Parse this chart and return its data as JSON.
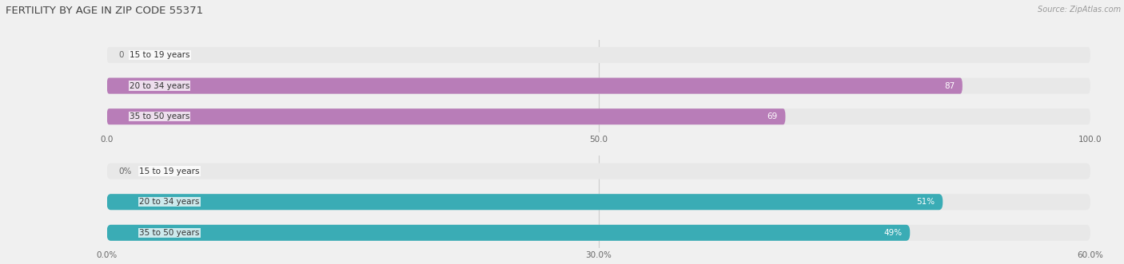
{
  "title": "FERTILITY BY AGE IN ZIP CODE 55371",
  "source": "Source: ZipAtlas.com",
  "chart1": {
    "categories": [
      "15 to 19 years",
      "20 to 34 years",
      "35 to 50 years"
    ],
    "values": [
      0.0,
      87.0,
      69.0
    ],
    "xlim": [
      0,
      100
    ],
    "xticks": [
      0.0,
      50.0,
      100.0
    ],
    "xtick_labels": [
      "0.0",
      "50.0",
      "100.0"
    ],
    "bar_color": "#b87db8",
    "bar_bg_color": "#e8e8e8",
    "label_color_inside": "#ffffff",
    "label_color_outside": "#666666",
    "value_threshold": 8,
    "value_fmt": "{}"
  },
  "chart2": {
    "categories": [
      "15 to 19 years",
      "20 to 34 years",
      "35 to 50 years"
    ],
    "values": [
      0.0,
      51.0,
      49.0
    ],
    "xlim": [
      0,
      60
    ],
    "xticks": [
      0.0,
      30.0,
      60.0
    ],
    "xtick_labels": [
      "0.0%",
      "30.0%",
      "60.0%"
    ],
    "bar_color": "#3aacb5",
    "bar_bg_color": "#e8e8e8",
    "label_color_inside": "#ffffff",
    "label_color_outside": "#666666",
    "value_threshold": 5,
    "value_fmt": "{}%"
  },
  "bg_color": "#f0f0f0",
  "bar_height": 0.52,
  "title_color": "#444444",
  "title_fontsize": 9.5,
  "source_fontsize": 7,
  "axis_fontsize": 7.5,
  "cat_fontsize": 7.5
}
